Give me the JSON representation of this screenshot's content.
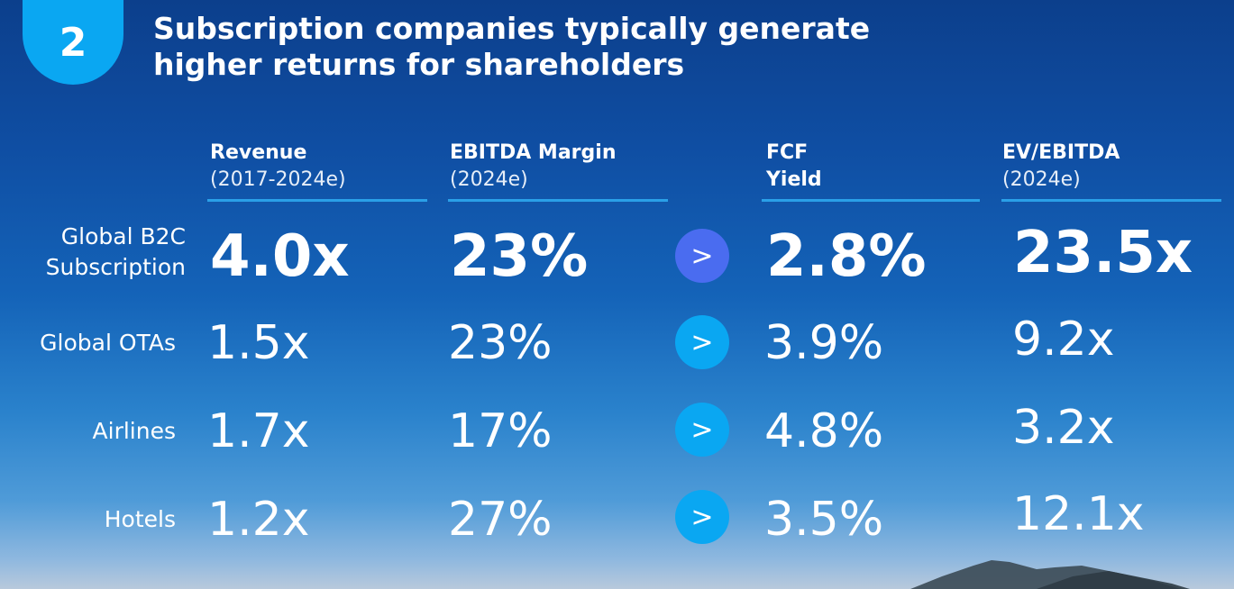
{
  "header": {
    "badge_number": "2",
    "title": "Subscription companies typically generate higher returns for shareholders"
  },
  "columns": [
    {
      "line1": "Revenue",
      "line2": "(2017-2024e)"
    },
    {
      "line1": "EBITDA Margin",
      "line2": "(2024e)"
    },
    {
      "line1": "FCF",
      "line2": "Yield"
    },
    {
      "line1": "EV/EBITDA",
      "line2": "(2024e)"
    }
  ],
  "rows": [
    {
      "label": "Global B2C Subscription",
      "revenue": "4.0x",
      "ebitda_margin": "23%",
      "fcf_yield": "2.8%",
      "ev_ebitda": "23.5x"
    },
    {
      "label": "Global OTAs",
      "revenue": "1.5x",
      "ebitda_margin": "23%",
      "fcf_yield": "3.9%",
      "ev_ebitda": "9.2x"
    },
    {
      "label": "Airlines",
      "revenue": "1.7x",
      "ebitda_margin": "17%",
      "fcf_yield": "4.8%",
      "ev_ebitda": "3.2x"
    },
    {
      "label": "Hotels",
      "revenue": "1.2x",
      "ebitda_margin": "27%",
      "fcf_yield": "3.5%",
      "ev_ebitda": "12.1x"
    }
  ],
  "arrow_glyph": ">",
  "colors": {
    "accent": "#0aa7f2",
    "highlight_arrow": "#4a6cf0",
    "rule": "#2aa0e8"
  }
}
